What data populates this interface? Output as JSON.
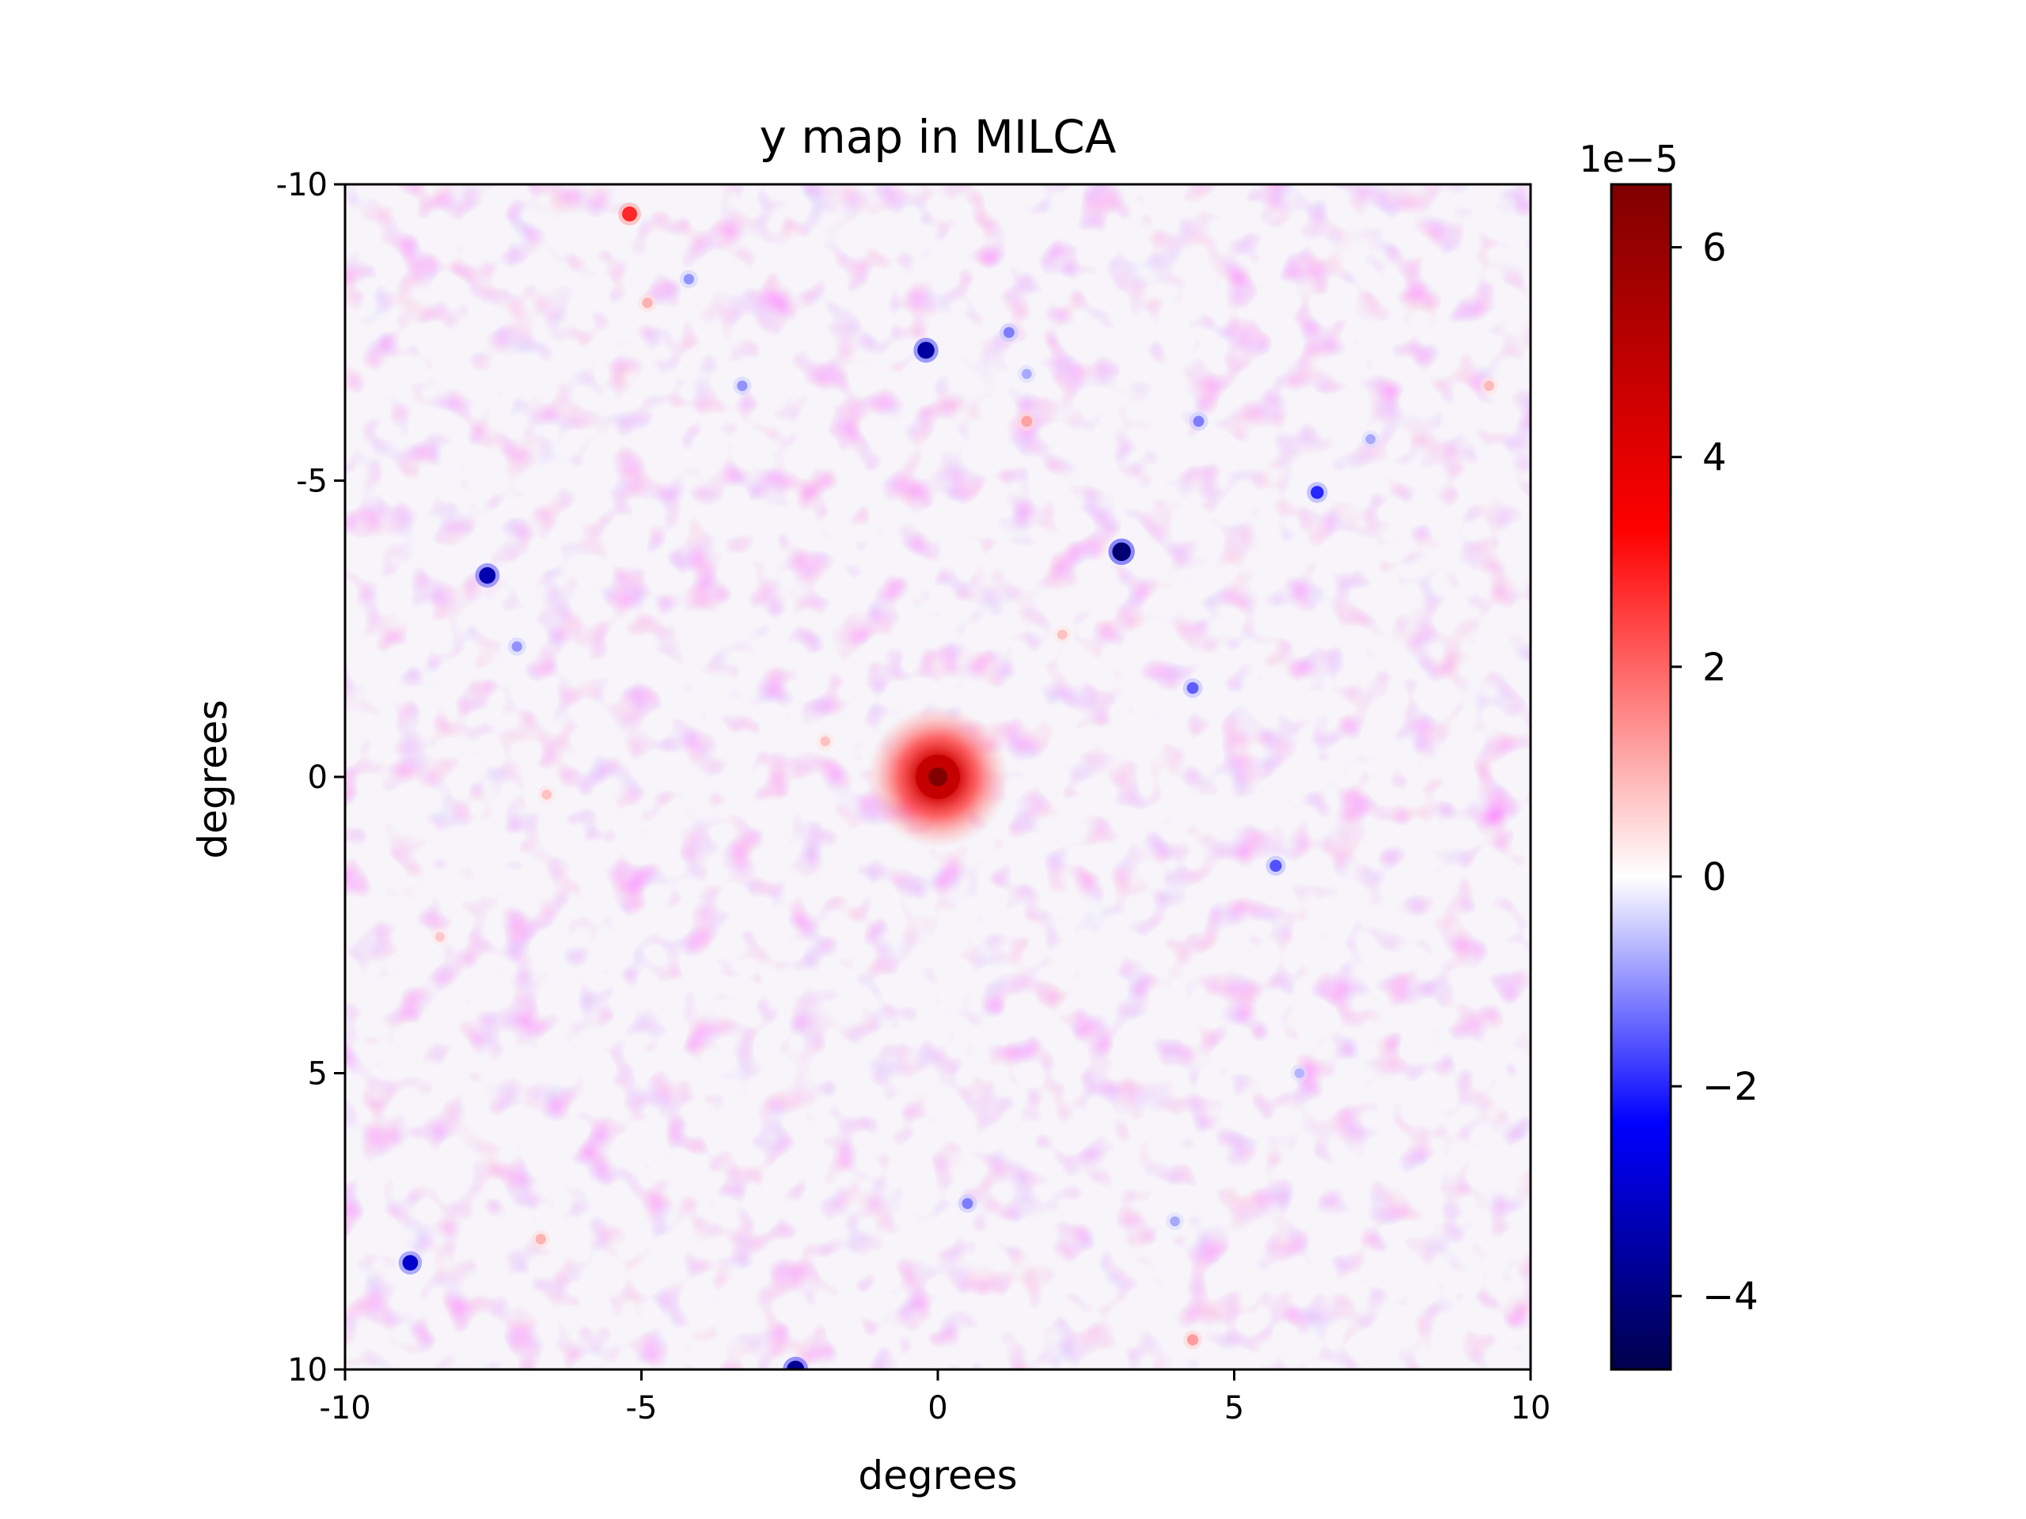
{
  "chart_data": {
    "type": "heatmap",
    "title": "y map in MILCA",
    "xlabel": "degrees",
    "ylabel": "degrees",
    "xlim": [
      -10,
      10
    ],
    "ylim": [
      10,
      -10
    ],
    "x_ticks": [
      -10,
      -5,
      0,
      5,
      10
    ],
    "y_ticks": [
      -10,
      -5,
      0,
      5,
      10
    ],
    "x_tick_labels": [
      "-10",
      "-5",
      "0",
      "5",
      "10"
    ],
    "y_tick_labels": [
      "-10",
      "-5",
      "0",
      "5",
      "10"
    ],
    "colorbar": {
      "colormap": "seismic",
      "range": [
        -4.7,
        6.6
      ],
      "ticks": [
        6,
        4,
        2,
        0,
        -2,
        -4
      ],
      "tick_labels": [
        "6",
        "4",
        "2",
        "0",
        "−2",
        "−4"
      ],
      "offset_label": "1e−5",
      "colors": {
        "min": "#00004c",
        "low": "#0000ff",
        "mid": "#ffffff",
        "high": "#ff0000",
        "max": "#7f0000"
      }
    },
    "field_noise": "low-amplitude mottled red/blue fluctuations around 0",
    "sources": [
      {
        "x": 0.0,
        "y": 0.0,
        "value": 6.5
      },
      {
        "x": -5.2,
        "y": -9.5,
        "value": 2.8
      },
      {
        "x": -4.9,
        "y": -8.0,
        "value": 1.0
      },
      {
        "x": 1.5,
        "y": -6.0,
        "value": 1.2
      },
      {
        "x": 9.3,
        "y": -6.6,
        "value": 0.9
      },
      {
        "x": 2.1,
        "y": -2.4,
        "value": 0.8
      },
      {
        "x": -1.9,
        "y": -0.6,
        "value": 0.8
      },
      {
        "x": -6.6,
        "y": 0.3,
        "value": 0.8
      },
      {
        "x": -6.7,
        "y": 7.8,
        "value": 1.0
      },
      {
        "x": 4.3,
        "y": 9.5,
        "value": 1.3
      },
      {
        "x": -8.4,
        "y": 2.7,
        "value": 0.7
      },
      {
        "x": -0.2,
        "y": -7.2,
        "value": -3.6
      },
      {
        "x": 1.2,
        "y": -7.5,
        "value": -1.2
      },
      {
        "x": -4.2,
        "y": -8.4,
        "value": -1.0
      },
      {
        "x": -3.3,
        "y": -6.6,
        "value": -1.0
      },
      {
        "x": 1.5,
        "y": -6.8,
        "value": -0.8
      },
      {
        "x": 4.4,
        "y": -6.0,
        "value": -1.2
      },
      {
        "x": 7.3,
        "y": -5.7,
        "value": -0.8
      },
      {
        "x": 6.4,
        "y": -4.8,
        "value": -2.0
      },
      {
        "x": 3.1,
        "y": -3.8,
        "value": -4.2
      },
      {
        "x": -7.6,
        "y": -3.4,
        "value": -3.4
      },
      {
        "x": -7.1,
        "y": -2.2,
        "value": -1.0
      },
      {
        "x": 4.3,
        "y": -1.5,
        "value": -1.5
      },
      {
        "x": 5.7,
        "y": 1.5,
        "value": -1.6
      },
      {
        "x": 0.5,
        "y": 7.2,
        "value": -1.2
      },
      {
        "x": 4.0,
        "y": 7.5,
        "value": -0.8
      },
      {
        "x": -8.9,
        "y": 8.2,
        "value": -3.0
      },
      {
        "x": -2.4,
        "y": 10.0,
        "value": -3.8
      },
      {
        "x": 6.1,
        "y": 5.0,
        "value": -0.7
      }
    ]
  }
}
